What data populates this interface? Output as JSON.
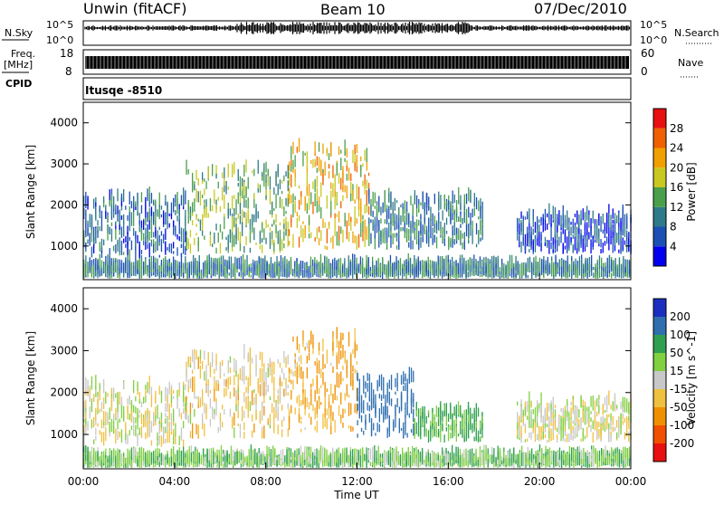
{
  "header": {
    "radar": "Unwin (fitACF)",
    "beam": "Beam 10",
    "date": "07/Dec/2010"
  },
  "nsky": {
    "label": "N.Sky",
    "ticks_left": [
      "10^5",
      "10^0"
    ],
    "ticks_right": [
      "10^5",
      "10^0"
    ],
    "right_label": "N.Search"
  },
  "freq": {
    "label_line1": "Freq.",
    "label_line2": "[MHz]",
    "ticks_left": [
      "18",
      "8"
    ],
    "ticks_right": [
      "60",
      "0"
    ],
    "right_label": "Nave"
  },
  "cpid": {
    "label": "CPID",
    "text": "Itusqe -8510"
  },
  "colors": {
    "power_scale": [
      "#0000ee",
      "#1c4fb6",
      "#2f7a8a",
      "#4aa04a",
      "#c8c820",
      "#f0a000",
      "#f06000",
      "#e81010"
    ],
    "velocity_scale": [
      "#e81010",
      "#f05000",
      "#f09000",
      "#f0c040",
      "#c8c8c8",
      "#80d040",
      "#2fa050",
      "#2f6fb0",
      "#1a2fc0"
    ]
  },
  "chart_data": [
    {
      "type": "heatmap",
      "title": "",
      "xlabel": "",
      "ylabel": "Slant Range [km]",
      "xlim": [
        "00:00",
        "24:00"
      ],
      "ylim": [
        180,
        4500
      ],
      "y_ticks": [
        1000,
        2000,
        3000,
        4000
      ],
      "grid": false,
      "colorbar": {
        "label": "Power [dB]",
        "range": [
          0,
          32
        ],
        "ticks": [
          4,
          8,
          12,
          16,
          20,
          24,
          28
        ]
      },
      "echo_regions": [
        {
          "x_start": 0.0,
          "x_end": 4.5,
          "range_lo": 700,
          "range_hi": 2100,
          "value_db": 8
        },
        {
          "x_start": 4.5,
          "x_end": 9.0,
          "range_lo": 800,
          "range_hi": 2800,
          "value_db": 14
        },
        {
          "x_start": 9.0,
          "x_end": 12.5,
          "range_lo": 900,
          "range_hi": 3300,
          "value_db": 20
        },
        {
          "x_start": 12.5,
          "x_end": 17.5,
          "range_lo": 900,
          "range_hi": 2100,
          "value_db": 10
        },
        {
          "x_start": 19.0,
          "x_end": 24.0,
          "range_lo": 800,
          "range_hi": 1700,
          "value_db": 6
        },
        {
          "x_start": 0.0,
          "x_end": 24.0,
          "range_lo": 200,
          "range_hi": 450,
          "value_db": 10
        }
      ]
    },
    {
      "type": "heatmap",
      "title": "",
      "xlabel": "Time UT",
      "ylabel": "Slant Range [km]",
      "xlim": [
        "00:00",
        "24:00"
      ],
      "x_ticks": [
        "00:00",
        "04:00",
        "08:00",
        "12:00",
        "16:00",
        "20:00",
        "00:00"
      ],
      "ylim": [
        180,
        4500
      ],
      "y_ticks": [
        1000,
        2000,
        3000,
        4000
      ],
      "grid": false,
      "colorbar": {
        "label": "Velocity [m s^-1]",
        "ticks": [
          200,
          100,
          50,
          15,
          -15,
          -50,
          -100,
          -200
        ]
      },
      "echo_regions": [
        {
          "x_start": 0.0,
          "x_end": 4.5,
          "range_lo": 700,
          "range_hi": 2100,
          "value_ms": 0
        },
        {
          "x_start": 4.5,
          "x_end": 9.0,
          "range_lo": 900,
          "range_hi": 2800,
          "value_ms": -20
        },
        {
          "x_start": 9.0,
          "x_end": 12.0,
          "range_lo": 1000,
          "range_hi": 3300,
          "value_ms": -50
        },
        {
          "x_start": 12.0,
          "x_end": 14.5,
          "range_lo": 900,
          "range_hi": 2300,
          "value_ms": 150
        },
        {
          "x_start": 14.5,
          "x_end": 17.5,
          "range_lo": 800,
          "range_hi": 1500,
          "value_ms": 60
        },
        {
          "x_start": 19.0,
          "x_end": 24.0,
          "range_lo": 800,
          "range_hi": 1700,
          "value_ms": 0
        },
        {
          "x_start": 0.0,
          "x_end": 24.0,
          "range_lo": 200,
          "range_hi": 400,
          "value_ms": 40
        }
      ]
    }
  ]
}
